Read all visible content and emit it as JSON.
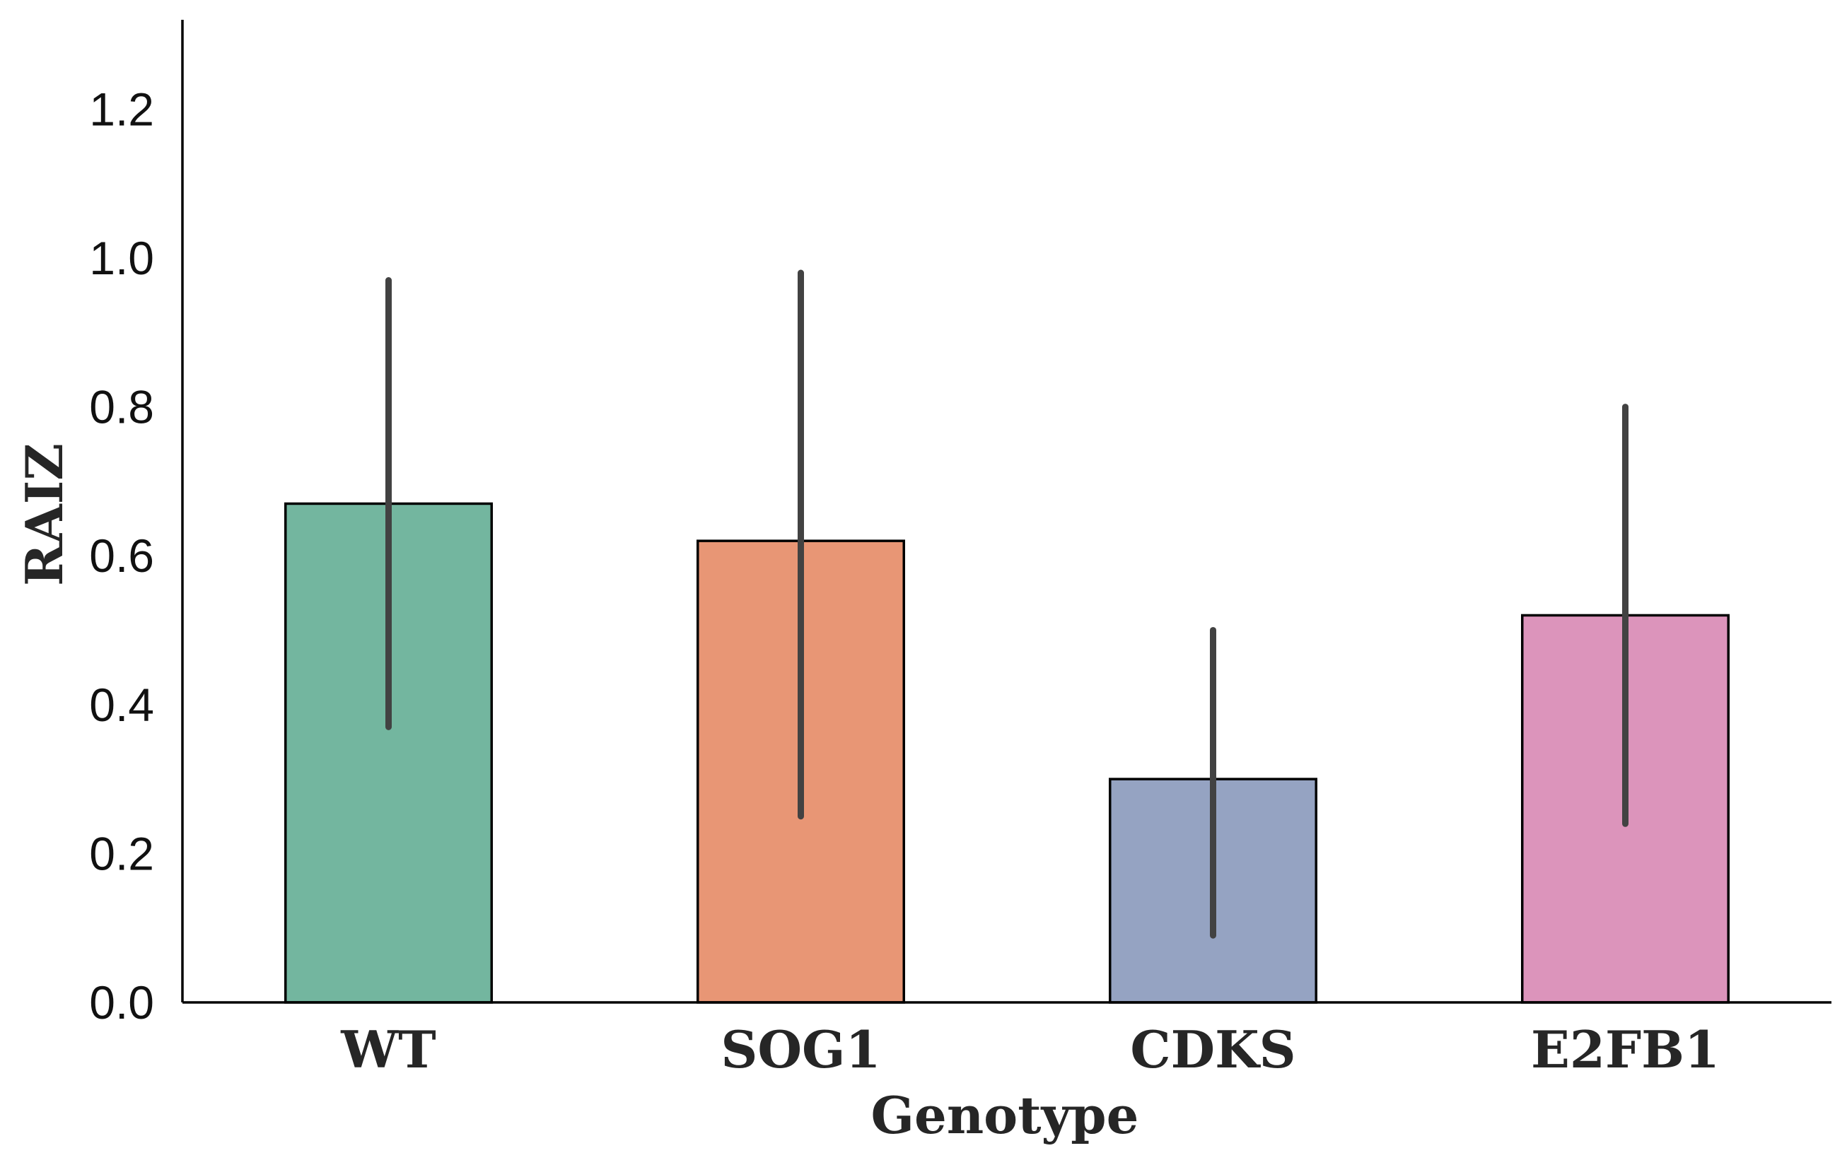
{
  "chart_data": {
    "type": "bar",
    "title": "",
    "xlabel": "Genotype",
    "ylabel": "RAIZ",
    "categories": [
      "WT",
      "SOG1",
      "CDKS",
      "E2FB1"
    ],
    "values": [
      0.67,
      0.62,
      0.3,
      0.52
    ],
    "error_low": [
      0.37,
      0.25,
      0.09,
      0.24
    ],
    "error_high": [
      0.97,
      0.98,
      0.5,
      0.8
    ],
    "colors": [
      "#73b69f",
      "#e89675",
      "#95a3c2",
      "#dc94bb"
    ],
    "ylim": [
      0,
      1.32
    ],
    "yticks": [
      "0.0",
      "0.2",
      "0.4",
      "0.6",
      "0.8",
      "1.0",
      "1.2"
    ],
    "ytick_values": [
      0.0,
      0.2,
      0.4,
      0.6,
      0.8,
      1.0,
      1.2
    ],
    "grid": false,
    "legend": "none"
  }
}
